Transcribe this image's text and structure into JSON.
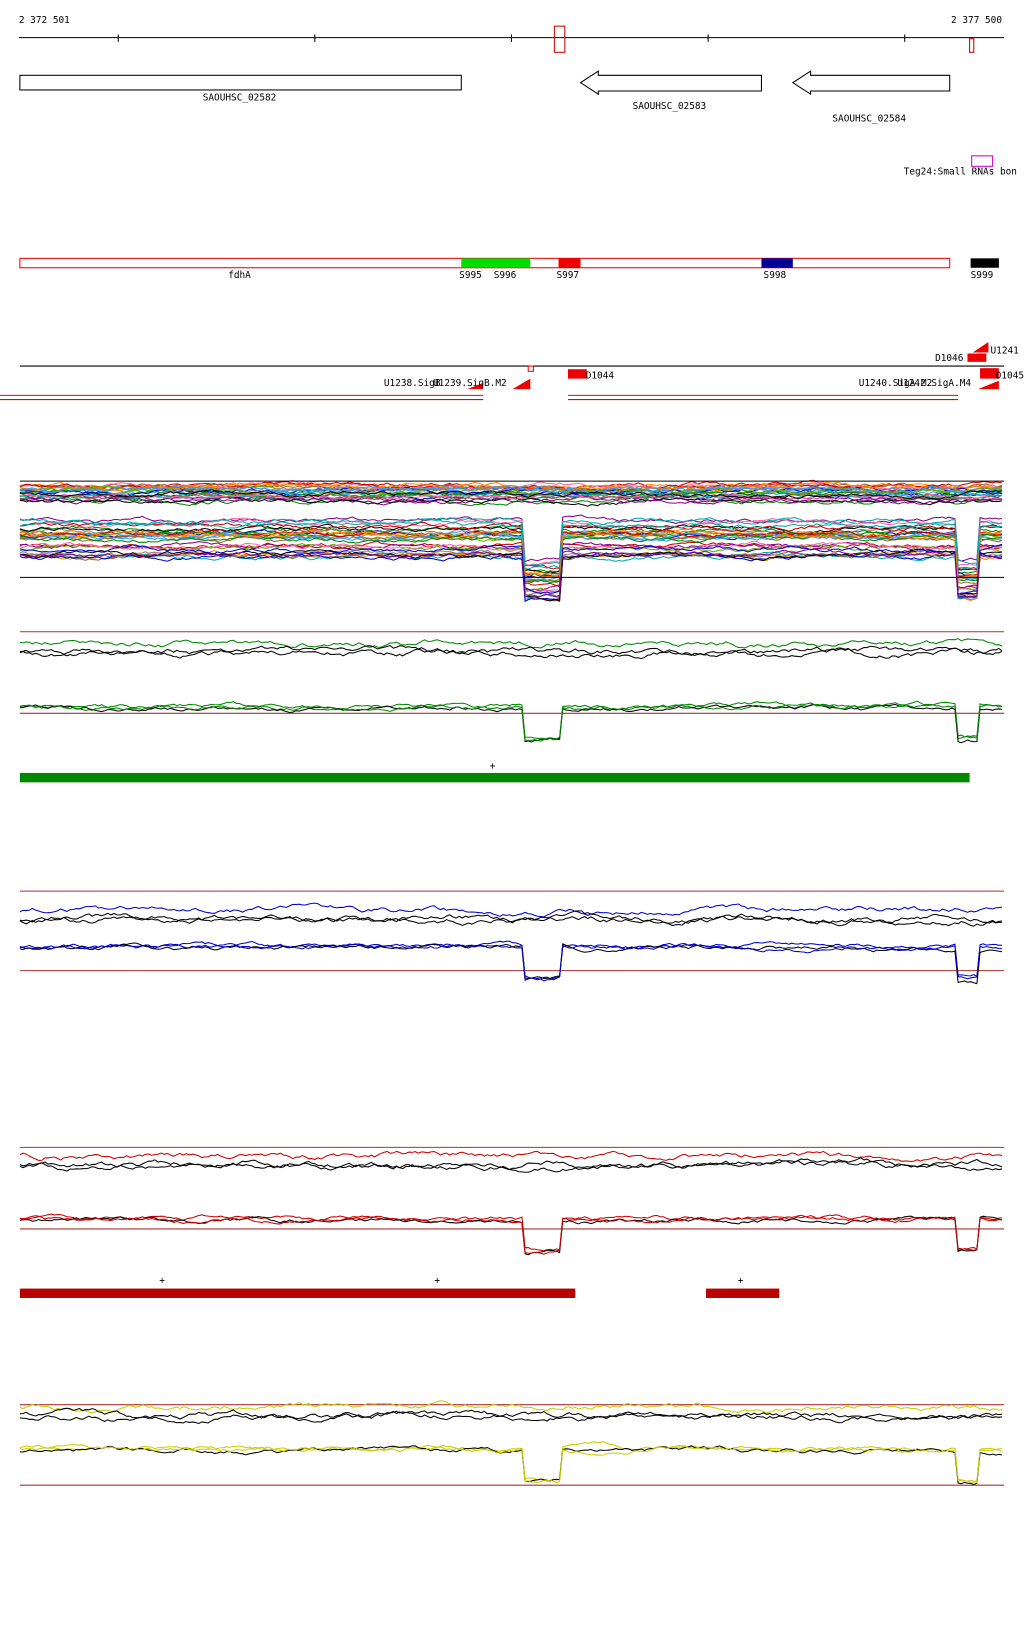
{
  "ruler": {
    "start": "2 372 501",
    "end": "2 377 500"
  },
  "genes": [
    {
      "label": "SAOUHSC_02582"
    },
    {
      "label": "SAOUHSC_02583"
    },
    {
      "label": "SAOUHSC_02584"
    }
  ],
  "small_rna": {
    "label": "Teg24:Small RNAs bon"
  },
  "features": [
    {
      "label": "fdhA"
    },
    {
      "label": "S995"
    },
    {
      "label": "S996"
    },
    {
      "label": "S997"
    },
    {
      "label": "S998"
    },
    {
      "label": "S999"
    }
  ],
  "transcripts": [
    {
      "label": "U1238.SigB"
    },
    {
      "label": "U1239.SigB.M2"
    },
    {
      "label": "D1044"
    },
    {
      "label": "U1240.SigA.M2"
    },
    {
      "label": "U1242.SigA.M4"
    },
    {
      "label": "U1241"
    },
    {
      "label": "D1046"
    },
    {
      "label": "D1045"
    }
  ],
  "markers": {
    "green": [
      "+"
    ],
    "red": [
      "+",
      "+",
      "+"
    ]
  }
}
